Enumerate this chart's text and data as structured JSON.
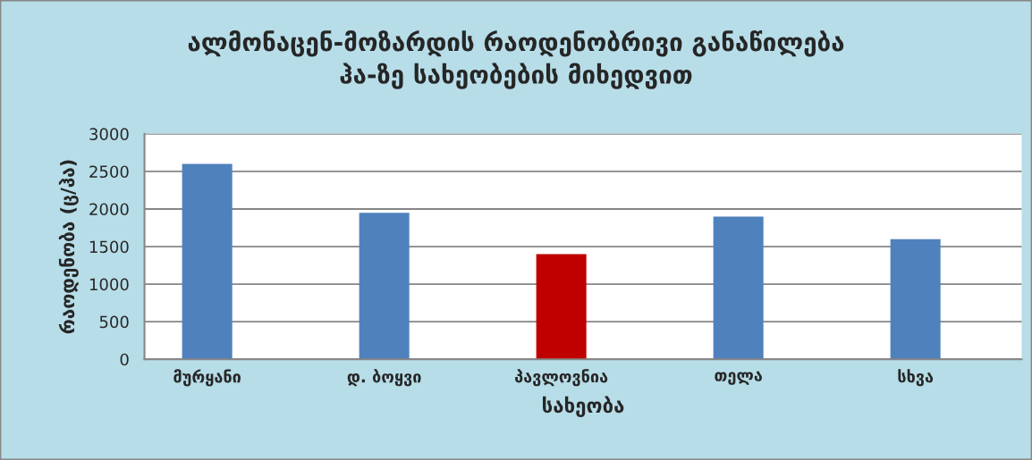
{
  "chart_data": {
    "type": "bar",
    "title": "ალმონაცენ-მოზარდის რაოდენობრივი განაწილება\nჰა-ზე სახეობების მიხედვით",
    "xlabel": "სახეობა",
    "ylabel": "რაოდენობა (ც/ჰა)",
    "categories": [
      "მურყანი",
      "დ. ბოყვი",
      "პავლოვნია",
      "თელა",
      "სხვა"
    ],
    "values": [
      2600,
      1950,
      1400,
      1900,
      1600
    ],
    "colors": [
      "#4f81bd",
      "#4f81bd",
      "#c00000",
      "#4f81bd",
      "#4f81bd"
    ],
    "ylim": [
      0,
      3000
    ],
    "yticks": [
      0,
      500,
      1000,
      1500,
      2000,
      2500,
      3000
    ],
    "grid": "y",
    "legend": false
  }
}
